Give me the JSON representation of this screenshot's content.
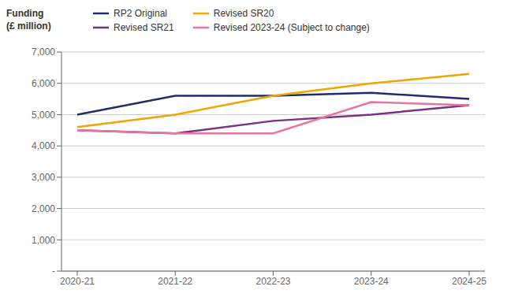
{
  "chart_data": {
    "type": "line",
    "y_label": "Funding\n(£ million)",
    "categories": [
      "2020-21",
      "2021-22",
      "2022-23",
      "2023-24",
      "2024-25"
    ],
    "series": [
      {
        "name": "RP2 Original",
        "color": "#1f2d6e",
        "values": [
          5000,
          5600,
          5600,
          5700,
          5500
        ]
      },
      {
        "name": "Revised SR20",
        "color": "#f0a500",
        "values": [
          4600,
          5000,
          5600,
          6000,
          6300
        ]
      },
      {
        "name": "Revised SR21",
        "color": "#7b3085",
        "values": [
          4500,
          4400,
          4800,
          5000,
          5300
        ]
      },
      {
        "name": "Revised 2023-24 (Subject to change)",
        "color": "#e8759a",
        "values": [
          4500,
          4400,
          4400,
          5400,
          5300
        ]
      }
    ],
    "ylim": [
      0,
      7000
    ],
    "yticks": [
      {
        "value": 0,
        "label": "-"
      },
      {
        "value": 1000,
        "label": "1,000"
      },
      {
        "value": 2000,
        "label": "2,000"
      },
      {
        "value": 3000,
        "label": "3,000"
      },
      {
        "value": 4000,
        "label": "4,000"
      },
      {
        "value": 5000,
        "label": "5,000"
      },
      {
        "value": 6000,
        "label": "6,000"
      },
      {
        "value": 7000,
        "label": "7,000"
      }
    ],
    "grid": true,
    "legend": "top"
  }
}
